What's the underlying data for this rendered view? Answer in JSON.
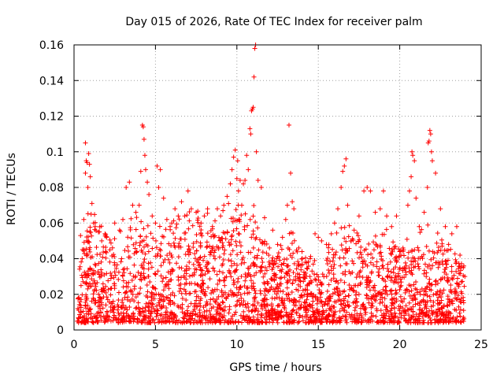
{
  "chart_data": {
    "type": "scatter",
    "title": "Day 015 of 2026, Rate Of TEC Index for receiver palm",
    "xlabel": "GPS time / hours",
    "ylabel": "ROTI / TECUs",
    "xlim": [
      0,
      25
    ],
    "ylim": [
      0,
      0.16
    ],
    "x_ticks": [
      0,
      5,
      10,
      15,
      20,
      25
    ],
    "x_tick_labels": [
      "0",
      "5",
      "10",
      "15",
      "20",
      "25"
    ],
    "y_ticks": [
      0,
      0.02,
      0.04,
      0.06,
      0.08,
      0.1,
      0.12,
      0.14,
      0.16
    ],
    "y_tick_labels": [
      "0",
      "0.02",
      "0.04",
      "0.06",
      "0.08",
      "0.1",
      "0.12",
      "0.14",
      "0.16"
    ],
    "grid": true,
    "marker": "+",
    "marker_color": "#ff0000",
    "series": [
      {
        "name": "ROTI",
        "x": [
          0.4,
          0.5,
          0.6,
          0.7,
          0.7,
          0.75,
          0.8,
          0.85,
          0.9,
          0.95,
          1.0,
          1.05,
          1.1,
          1.2,
          1.3,
          1.5,
          1.7,
          2.0,
          2.2,
          2.5,
          2.8,
          3.0,
          3.2,
          3.4,
          3.6,
          3.8,
          4.0,
          4.1,
          4.2,
          4.25,
          4.3,
          4.35,
          4.4,
          4.5,
          4.6,
          4.8,
          5.0,
          5.1,
          5.2,
          5.3,
          5.5,
          5.7,
          5.9,
          6.0,
          6.2,
          6.4,
          6.6,
          6.8,
          7.0,
          7.2,
          7.5,
          7.8,
          8.0,
          8.2,
          8.5,
          8.8,
          9.0,
          9.2,
          9.4,
          9.6,
          9.7,
          9.8,
          9.9,
          10.0,
          10.05,
          10.1,
          10.2,
          10.3,
          10.4,
          10.5,
          10.6,
          10.7,
          10.8,
          10.85,
          10.9,
          10.95,
          11.0,
          11.05,
          11.1,
          11.15,
          11.2,
          11.3,
          11.5,
          11.7,
          12.0,
          12.2,
          12.5,
          12.8,
          13.0,
          13.1,
          13.2,
          13.3,
          13.4,
          13.5,
          13.8,
          14.0,
          14.2,
          14.5,
          14.8,
          15.0,
          15.2,
          15.5,
          15.8,
          16.0,
          16.2,
          16.4,
          16.5,
          16.6,
          16.7,
          16.8,
          17.0,
          17.2,
          17.5,
          17.8,
          18.0,
          18.2,
          18.5,
          18.8,
          19.0,
          19.2,
          19.5,
          19.8,
          20.0,
          20.2,
          20.5,
          20.6,
          20.7,
          20.75,
          20.8,
          20.9,
          21.0,
          21.2,
          21.5,
          21.7,
          21.75,
          21.8,
          21.85,
          21.9,
          21.95,
          22.0,
          22.2,
          22.5,
          22.8,
          23.0,
          23.2,
          23.5,
          23.7,
          23.9,
          24.0
        ],
        "y": [
          0.053,
          0.04,
          0.062,
          0.088,
          0.105,
          0.095,
          0.094,
          0.08,
          0.099,
          0.093,
          0.086,
          0.065,
          0.071,
          0.06,
          0.058,
          0.055,
          0.05,
          0.052,
          0.045,
          0.06,
          0.056,
          0.062,
          0.08,
          0.083,
          0.07,
          0.066,
          0.07,
          0.089,
          0.115,
          0.114,
          0.107,
          0.098,
          0.09,
          0.083,
          0.076,
          0.064,
          0.06,
          0.092,
          0.08,
          0.09,
          0.074,
          0.062,
          0.058,
          0.06,
          0.068,
          0.064,
          0.072,
          0.064,
          0.078,
          0.068,
          0.066,
          0.06,
          0.064,
          0.068,
          0.058,
          0.068,
          0.064,
          0.07,
          0.075,
          0.082,
          0.09,
          0.097,
          0.101,
          0.085,
          0.095,
          0.078,
          0.084,
          0.07,
          0.082,
          0.084,
          0.098,
          0.09,
          0.113,
          0.11,
          0.123,
          0.124,
          0.125,
          0.142,
          0.158,
          0.16,
          0.1,
          0.084,
          0.08,
          0.063,
          0.046,
          0.056,
          0.048,
          0.052,
          0.062,
          0.07,
          0.115,
          0.088,
          0.072,
          0.068,
          0.046,
          0.044,
          0.038,
          0.04,
          0.054,
          0.052,
          0.05,
          0.048,
          0.054,
          0.06,
          0.068,
          0.08,
          0.089,
          0.092,
          0.096,
          0.07,
          0.05,
          0.056,
          0.064,
          0.078,
          0.08,
          0.078,
          0.066,
          0.068,
          0.078,
          0.064,
          0.058,
          0.064,
          0.044,
          0.046,
          0.07,
          0.078,
          0.086,
          0.1,
          0.098,
          0.095,
          0.074,
          0.058,
          0.066,
          0.08,
          0.105,
          0.106,
          0.112,
          0.11,
          0.1,
          0.095,
          0.088,
          0.068,
          0.058,
          0.048,
          0.054,
          0.058,
          0.042,
          0.035,
          0.03
        ],
        "base_profile_x": [
          0.2,
          0.5,
          0.8,
          1.0,
          1.5,
          2.0,
          2.5,
          3.0,
          3.5,
          4.0,
          4.5,
          5.0,
          5.5,
          6.0,
          6.5,
          7.0,
          7.5,
          8.0,
          8.5,
          9.0,
          9.5,
          10.0,
          10.5,
          11.0,
          11.5,
          12.0,
          12.5,
          13.0,
          13.5,
          14.0,
          14.5,
          15.0,
          15.5,
          16.0,
          16.5,
          17.0,
          17.5,
          18.0,
          18.5,
          19.0,
          19.5,
          20.0,
          20.5,
          21.0,
          21.5,
          22.0,
          22.5,
          23.0,
          23.5,
          24.0
        ],
        "base_profile_y": [
          0.025,
          0.04,
          0.052,
          0.055,
          0.05,
          0.046,
          0.042,
          0.048,
          0.052,
          0.054,
          0.05,
          0.048,
          0.05,
          0.052,
          0.056,
          0.056,
          0.054,
          0.052,
          0.054,
          0.056,
          0.06,
          0.066,
          0.064,
          0.062,
          0.05,
          0.04,
          0.038,
          0.046,
          0.048,
          0.04,
          0.034,
          0.036,
          0.038,
          0.046,
          0.052,
          0.046,
          0.044,
          0.046,
          0.05,
          0.048,
          0.046,
          0.04,
          0.04,
          0.042,
          0.05,
          0.05,
          0.044,
          0.04,
          0.036,
          0.03
        ]
      }
    ]
  }
}
